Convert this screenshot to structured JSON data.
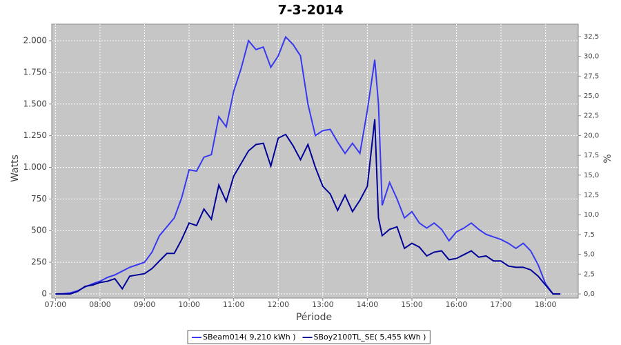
{
  "chart_data": {
    "type": "line",
    "title": "7-3-2014",
    "y_label": "Watts",
    "y2_label": "%",
    "x_label": "Période",
    "x": [
      420,
      430,
      440,
      450,
      460,
      470,
      480,
      490,
      500,
      510,
      520,
      530,
      540,
      550,
      560,
      570,
      580,
      590,
      600,
      610,
      620,
      630,
      640,
      650,
      660,
      670,
      680,
      690,
      700,
      710,
      720,
      730,
      740,
      750,
      760,
      770,
      780,
      790,
      800,
      810,
      820,
      830,
      840,
      850,
      855,
      860,
      870,
      880,
      890,
      900,
      910,
      920,
      930,
      940,
      950,
      960,
      970,
      980,
      990,
      1000,
      1010,
      1020,
      1030,
      1040,
      1050,
      1060,
      1070,
      1080,
      1090,
      1100
    ],
    "series": [
      {
        "name": "SBeam014( 9,210 kWh )",
        "color": "#3838f0",
        "values": [
          0,
          2,
          8,
          25,
          55,
          80,
          100,
          130,
          150,
          180,
          210,
          230,
          250,
          330,
          460,
          530,
          600,
          760,
          980,
          970,
          1080,
          1100,
          1400,
          1320,
          1600,
          1780,
          2000,
          1930,
          1950,
          1790,
          1880,
          2030,
          1970,
          1880,
          1500,
          1250,
          1290,
          1300,
          1200,
          1110,
          1190,
          1110,
          1450,
          1850,
          1500,
          700,
          880,
          750,
          600,
          650,
          560,
          520,
          560,
          510,
          420,
          490,
          520,
          560,
          510,
          470,
          450,
          430,
          400,
          360,
          400,
          340,
          230,
          80,
          0,
          0
        ]
      },
      {
        "name": "SBoy2100TL_SE( 5,455 kWh )",
        "color": "#000099",
        "values": [
          0,
          0,
          0,
          20,
          60,
          70,
          90,
          100,
          120,
          40,
          140,
          150,
          160,
          200,
          260,
          320,
          320,
          430,
          560,
          540,
          670,
          590,
          860,
          730,
          930,
          1030,
          1130,
          1180,
          1190,
          1010,
          1230,
          1260,
          1170,
          1060,
          1180,
          1000,
          850,
          790,
          660,
          780,
          650,
          740,
          850,
          1380,
          600,
          460,
          510,
          530,
          360,
          400,
          370,
          300,
          330,
          340,
          270,
          280,
          310,
          340,
          290,
          300,
          260,
          260,
          220,
          210,
          210,
          190,
          140,
          70,
          0,
          0
        ]
      }
    ],
    "xlim": [
      415,
      1124
    ],
    "xticks": [
      {
        "value": 420,
        "label": "07:00"
      },
      {
        "value": 480,
        "label": "08:00"
      },
      {
        "value": 540,
        "label": "09:00"
      },
      {
        "value": 600,
        "label": "10:00"
      },
      {
        "value": 660,
        "label": "11:00"
      },
      {
        "value": 720,
        "label": "12:00"
      },
      {
        "value": 780,
        "label": "13:00"
      },
      {
        "value": 840,
        "label": "14:00"
      },
      {
        "value": 900,
        "label": "15:00"
      },
      {
        "value": 960,
        "label": "16:00"
      },
      {
        "value": 1020,
        "label": "17:00"
      },
      {
        "value": 1080,
        "label": "18:00"
      }
    ],
    "ylim": [
      -33,
      2131
    ],
    "yticks": [
      0,
      250,
      500,
      750,
      {
        "value": 1000,
        "label": "1.000"
      },
      {
        "value": 1250,
        "label": "1.250"
      },
      {
        "value": 1500,
        "label": "1.500"
      },
      {
        "value": 1750,
        "label": "1.750"
      },
      {
        "value": 2000,
        "label": "2.000"
      }
    ],
    "y2lim": [
      -0.52,
      34.06
    ],
    "y2ticks": [
      {
        "value": 0,
        "label": "0,0"
      },
      {
        "value": 2.5,
        "label": "2,5"
      },
      {
        "value": 5,
        "label": "5,0"
      },
      {
        "value": 7.5,
        "label": "7,5"
      },
      {
        "value": 10,
        "label": "10,0"
      },
      {
        "value": 12.5,
        "label": "12,5"
      },
      {
        "value": 15,
        "label": "15,0"
      },
      {
        "value": 17.5,
        "label": "17,5"
      },
      {
        "value": 20,
        "label": "20,0"
      },
      {
        "value": 22.5,
        "label": "22,5"
      },
      {
        "value": 25,
        "label": "25,0"
      },
      {
        "value": 27.5,
        "label": "27,5"
      },
      {
        "value": 30,
        "label": "30,0"
      },
      {
        "value": 32.5,
        "label": "32,5"
      }
    ],
    "grid": true,
    "legend": "bottom"
  }
}
